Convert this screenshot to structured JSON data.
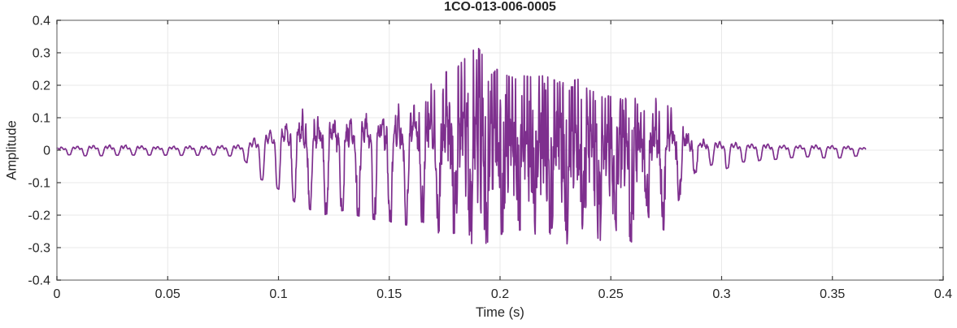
{
  "chart_data": {
    "type": "line",
    "title": "1CO-013-006-0005",
    "xlabel": "Time (s)",
    "ylabel": "Amplitude",
    "xlim": [
      0,
      0.4
    ],
    "ylim": [
      -0.4,
      0.4
    ],
    "xticks": [
      0,
      0.05,
      0.1,
      0.15,
      0.2,
      0.25,
      0.3,
      0.35,
      0.4
    ],
    "xtick_labels": [
      "0",
      "0.05",
      "0.1",
      "0.15",
      "0.2",
      "0.25",
      "0.3",
      "0.35",
      "0.4"
    ],
    "yticks": [
      -0.4,
      -0.3,
      -0.2,
      -0.1,
      0,
      0.1,
      0.2,
      0.3,
      0.4
    ],
    "ytick_labels": [
      "-0.4",
      "-0.3",
      "-0.2",
      "-0.1",
      "0",
      "0.1",
      "0.2",
      "0.3",
      "0.4"
    ],
    "grid": true,
    "legend": "none",
    "colors": {
      "line": "#7E2F8E",
      "grid": "#e8e8e8",
      "frame": "#8f8f8f",
      "tick": "#3d3d3d",
      "text": "#262626",
      "background": "#ffffff"
    },
    "signal": {
      "description": "speech-like waveform; quiet until ~0.086 s, voiced burst peaking +0.32/-0.31 near t=0.19 s, decays by ~0.29 s, low-level tail ends at ~0.365 s",
      "t_start": 0,
      "t_end": 0.365,
      "pitch_hz": 138,
      "peak_amplitude": 0.32,
      "min_amplitude": -0.31,
      "envelope": [
        [
          0.0,
          0.012,
          -0.012
        ],
        [
          0.015,
          0.02,
          -0.018
        ],
        [
          0.03,
          0.022,
          -0.015
        ],
        [
          0.045,
          0.015,
          -0.015
        ],
        [
          0.06,
          0.018,
          -0.016
        ],
        [
          0.075,
          0.02,
          -0.014
        ],
        [
          0.084,
          0.022,
          -0.025
        ],
        [
          0.088,
          0.045,
          -0.06
        ],
        [
          0.092,
          0.07,
          -0.09
        ],
        [
          0.096,
          0.085,
          -0.1
        ],
        [
          0.1,
          0.095,
          -0.12
        ],
        [
          0.105,
          0.13,
          -0.15
        ],
        [
          0.11,
          0.135,
          -0.17
        ],
        [
          0.115,
          0.125,
          -0.185
        ],
        [
          0.12,
          0.13,
          -0.2
        ],
        [
          0.125,
          0.135,
          -0.19
        ],
        [
          0.13,
          0.125,
          -0.185
        ],
        [
          0.135,
          0.13,
          -0.2
        ],
        [
          0.14,
          0.14,
          -0.21
        ],
        [
          0.145,
          0.135,
          -0.215
        ],
        [
          0.15,
          0.15,
          -0.22
        ],
        [
          0.155,
          0.17,
          -0.225
        ],
        [
          0.16,
          0.185,
          -0.235
        ],
        [
          0.165,
          0.2,
          -0.22
        ],
        [
          0.17,
          0.205,
          -0.25
        ],
        [
          0.175,
          0.24,
          -0.26
        ],
        [
          0.18,
          0.25,
          -0.255
        ],
        [
          0.185,
          0.29,
          -0.27
        ],
        [
          0.19,
          0.32,
          -0.31
        ],
        [
          0.193,
          0.28,
          -0.29
        ],
        [
          0.197,
          0.26,
          -0.27
        ],
        [
          0.2,
          0.24,
          -0.26
        ],
        [
          0.205,
          0.225,
          -0.25
        ],
        [
          0.21,
          0.23,
          -0.245
        ],
        [
          0.215,
          0.225,
          -0.26
        ],
        [
          0.22,
          0.23,
          -0.25
        ],
        [
          0.225,
          0.215,
          -0.265
        ],
        [
          0.23,
          0.205,
          -0.29
        ],
        [
          0.235,
          0.22,
          -0.255
        ],
        [
          0.24,
          0.185,
          -0.225
        ],
        [
          0.245,
          0.175,
          -0.28
        ],
        [
          0.25,
          0.165,
          -0.23
        ],
        [
          0.255,
          0.18,
          -0.265
        ],
        [
          0.26,
          0.17,
          -0.285
        ],
        [
          0.265,
          0.13,
          -0.19
        ],
        [
          0.27,
          0.16,
          -0.23
        ],
        [
          0.275,
          0.15,
          -0.25
        ],
        [
          0.28,
          0.105,
          -0.16
        ],
        [
          0.284,
          0.08,
          -0.12
        ],
        [
          0.288,
          0.055,
          -0.07
        ],
        [
          0.292,
          0.04,
          -0.05
        ],
        [
          0.296,
          0.038,
          -0.045
        ],
        [
          0.3,
          0.035,
          -0.065
        ],
        [
          0.304,
          0.032,
          -0.05
        ],
        [
          0.308,
          0.03,
          -0.035
        ],
        [
          0.313,
          0.026,
          -0.038
        ],
        [
          0.318,
          0.03,
          -0.03
        ],
        [
          0.325,
          0.022,
          -0.028
        ],
        [
          0.333,
          0.02,
          -0.022
        ],
        [
          0.341,
          0.022,
          -0.02
        ],
        [
          0.35,
          0.02,
          -0.026
        ],
        [
          0.358,
          0.016,
          -0.02
        ],
        [
          0.365,
          0.01,
          -0.015
        ]
      ]
    }
  }
}
